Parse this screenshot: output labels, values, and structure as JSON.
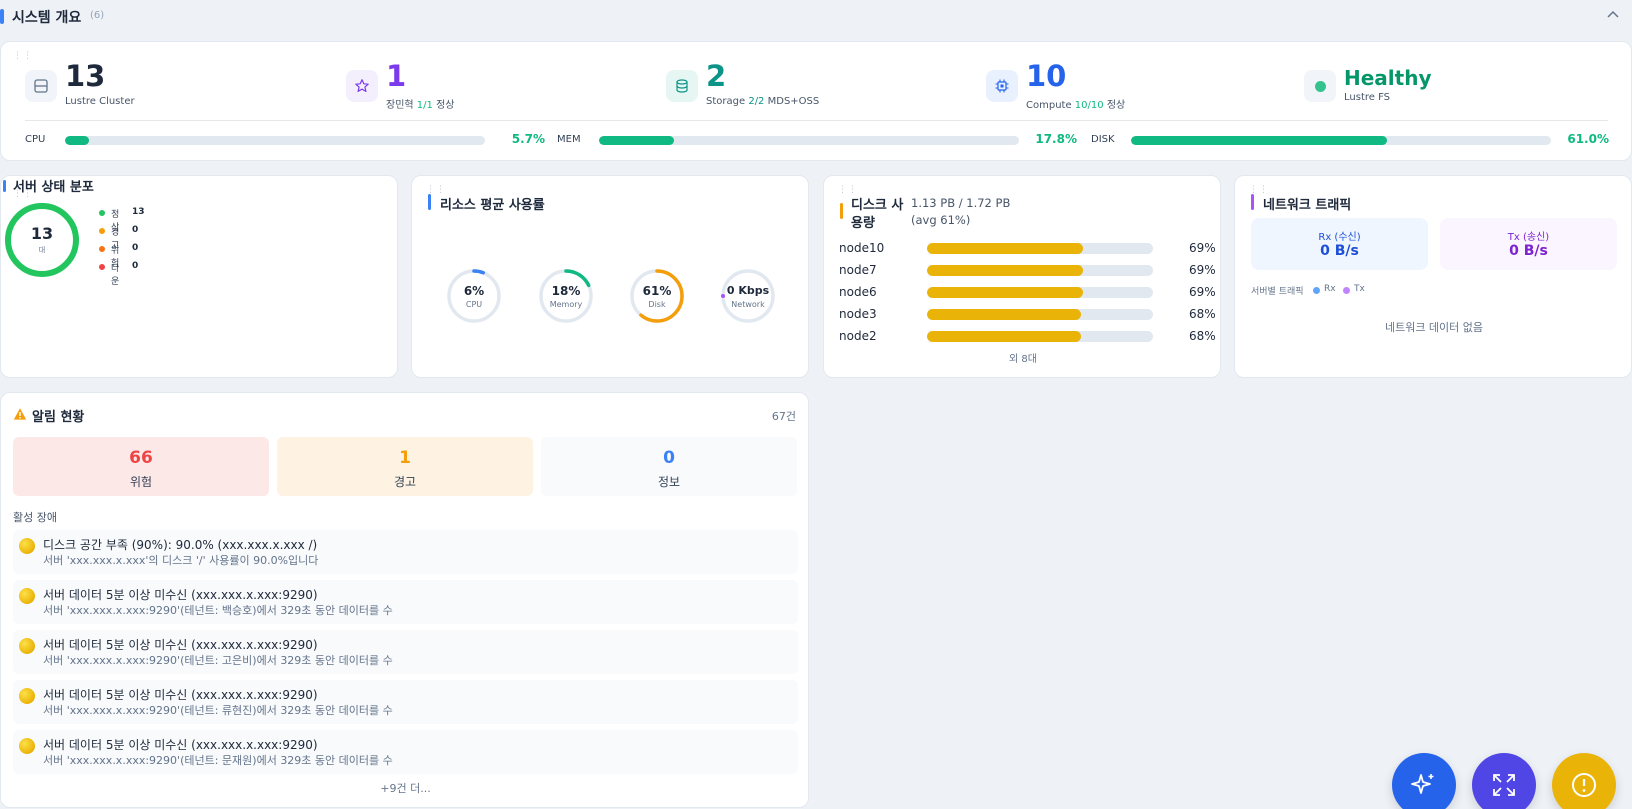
{
  "header": {
    "title": "시스템 개요",
    "count": "(6)",
    "collapse_icon": "chevron-up-icon"
  },
  "summary": {
    "cluster": {
      "value": "13",
      "label": "Lustre Cluster",
      "icon": "server-icon"
    },
    "admins": {
      "value": "1",
      "label_prefix": "장민혁",
      "ratio": "1/1",
      "label_suffix": "정상",
      "icon": "star-icon",
      "color": "#7c3aed"
    },
    "storage": {
      "value": "2",
      "label_prefix": "Storage",
      "ratio": "2/2",
      "label_suffix": "MDS+OSS",
      "icon": "database-icon",
      "color": "#0d9488"
    },
    "compute": {
      "value": "10",
      "label_prefix": "Compute",
      "ratio": "10/10",
      "label_suffix": "정상",
      "icon": "cpu-icon",
      "color": "#2563eb"
    },
    "health": {
      "value": "Healthy",
      "label": "Lustre FS",
      "color": "#059669"
    },
    "metrics": {
      "cpu": {
        "label": "CPU",
        "percent": 5.7,
        "display": "5.7%"
      },
      "mem": {
        "label": "MEM",
        "percent": 17.8,
        "display": "17.8%"
      },
      "disk": {
        "label": "DISK",
        "percent": 61.0,
        "display": "61.0%"
      }
    }
  },
  "server_status": {
    "title": "서버 상태 분포",
    "total": "13",
    "unit": "대",
    "legend": [
      {
        "label": "정상",
        "value": "13",
        "color": "#22c55e"
      },
      {
        "label": "경고",
        "value": "0",
        "color": "#f59e0b"
      },
      {
        "label": "위험",
        "value": "0",
        "color": "#f97316"
      },
      {
        "label": "다운",
        "value": "0",
        "color": "#ef4444"
      }
    ]
  },
  "resources": {
    "title": "리소스 평균 사용률",
    "gauges": [
      {
        "value": "6%",
        "label": "CPU",
        "percent": 6,
        "color": "#3b82f6"
      },
      {
        "value": "18%",
        "label": "Memory",
        "percent": 18,
        "color": "#10b981"
      },
      {
        "value": "61%",
        "label": "Disk",
        "percent": 61,
        "color": "#f59e0b"
      },
      {
        "value": "0 Kbps",
        "label": "Network",
        "percent": 0,
        "color": "#a855f7"
      }
    ]
  },
  "disk": {
    "title_line1": "디스크 사",
    "title_line2": "용량",
    "summary": "1.13 PB / 1.72 PB (avg 61%)",
    "rows": [
      {
        "name": "node10",
        "percent": 69,
        "display": "69%"
      },
      {
        "name": "node7",
        "percent": 69,
        "display": "69%"
      },
      {
        "name": "node6",
        "percent": 69,
        "display": "69%"
      },
      {
        "name": "node3",
        "percent": 68,
        "display": "68%"
      },
      {
        "name": "node2",
        "percent": 68,
        "display": "68%"
      }
    ],
    "more": "외 8대"
  },
  "network": {
    "title": "네트워크 트래픽",
    "rx_label": "Rx (수신)",
    "rx_value": "0 B/s",
    "tx_label": "Tx (송신)",
    "tx_value": "0 B/s",
    "per_server_label": "서버별 트래픽",
    "legend_rx": "Rx",
    "legend_tx": "Tx",
    "empty": "네트워크 데이터 없음"
  },
  "alerts": {
    "title": "알림 현황",
    "total": "67건",
    "critical": {
      "value": "66",
      "label": "위험"
    },
    "warning": {
      "value": "1",
      "label": "경고"
    },
    "info": {
      "value": "0",
      "label": "정보"
    },
    "active_label": "활성 장애",
    "items": [
      {
        "title": "디스크 공간 부족 (90%): 90.0% (xxx.xxx.x.xxx /)",
        "desc": "서버 'xxx.xxx.x.xxx'의 디스크 '/' 사용률이 90.0%입니다"
      },
      {
        "title": "서버 데이터 5분 이상 미수신 (xxx.xxx.x.xxx:9290)",
        "desc": "서버 'xxx.xxx.x.xxx:9290'(테넌트: 백승호)에서 329초 동안 데이터를 수"
      },
      {
        "title": "서버 데이터 5분 이상 미수신 (xxx.xxx.x.xxx:9290)",
        "desc": "서버 'xxx.xxx.x.xxx:9290'(테넌트: 고은비)에서 329초 동안 데이터를 수"
      },
      {
        "title": "서버 데이터 5분 이상 미수신 (xxx.xxx.x.xxx:9290)",
        "desc": "서버 'xxx.xxx.x.xxx:9290'(테넌트: 류현진)에서 329초 동안 데이터를 수"
      },
      {
        "title": "서버 데이터 5분 이상 미수신 (xxx.xxx.x.xxx:9290)",
        "desc": "서버 'xxx.xxx.x.xxx:9290'(테넌트: 문재원)에서 329초 동안 데이터를 수"
      }
    ],
    "more": "+9건 더..."
  },
  "fabs": [
    {
      "icon": "sparkles-icon",
      "color": "#2563eb"
    },
    {
      "icon": "expand-icon",
      "color": "#4f46e5"
    },
    {
      "icon": "alert-circle-icon",
      "color": "#eab308"
    }
  ]
}
